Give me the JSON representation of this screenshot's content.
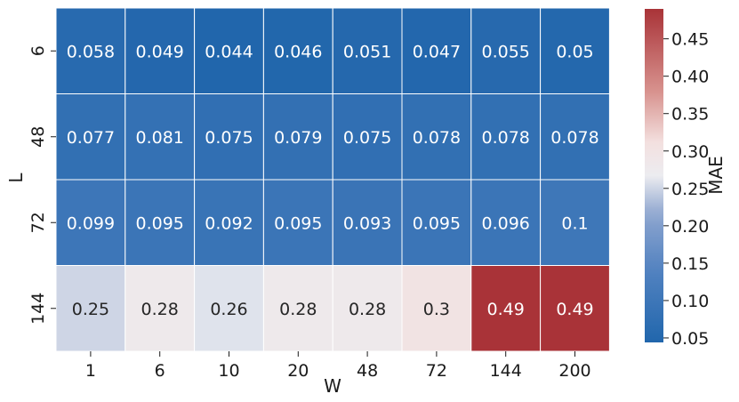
{
  "chart_data": {
    "type": "heatmap",
    "title": "",
    "xlabel": "W",
    "ylabel": "L",
    "x_categories": [
      "1",
      "6",
      "10",
      "20",
      "48",
      "72",
      "144",
      "200"
    ],
    "y_categories": [
      "6",
      "48",
      "72",
      "144"
    ],
    "cell_labels": [
      [
        "0.058",
        "0.049",
        "0.044",
        "0.046",
        "0.051",
        "0.047",
        "0.055",
        "0.05"
      ],
      [
        "0.077",
        "0.081",
        "0.075",
        "0.079",
        "0.075",
        "0.078",
        "0.078",
        "0.078"
      ],
      [
        "0.099",
        "0.095",
        "0.092",
        "0.095",
        "0.093",
        "0.095",
        "0.096",
        "0.1"
      ],
      [
        "0.25",
        "0.28",
        "0.26",
        "0.28",
        "0.28",
        "0.3",
        "0.49",
        "0.49"
      ]
    ],
    "values": [
      [
        0.058,
        0.049,
        0.044,
        0.046,
        0.051,
        0.047,
        0.055,
        0.05
      ],
      [
        0.077,
        0.081,
        0.075,
        0.079,
        0.075,
        0.078,
        0.078,
        0.078
      ],
      [
        0.099,
        0.095,
        0.092,
        0.095,
        0.093,
        0.095,
        0.096,
        0.1
      ],
      [
        0.25,
        0.28,
        0.26,
        0.28,
        0.28,
        0.3,
        0.49,
        0.49
      ]
    ],
    "colorbar": {
      "label": "MAE",
      "range": [
        0.044,
        0.49
      ],
      "ticks": [
        "0.05",
        "0.10",
        "0.15",
        "0.20",
        "0.25",
        "0.30",
        "0.35",
        "0.40",
        "0.45"
      ],
      "colormap": "vlag"
    },
    "grid": false
  }
}
